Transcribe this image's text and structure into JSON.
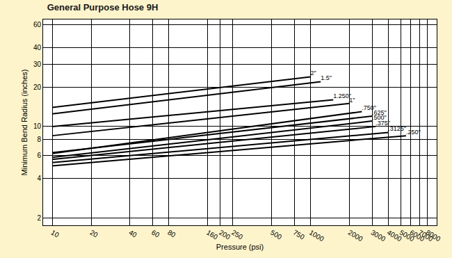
{
  "chart_data": {
    "type": "line",
    "title": "General Purpose Hose 9H",
    "x_label": "Pressure (psi)",
    "y_label": "Minimum Bend Radius (inches)",
    "log": true,
    "grid": true,
    "xlim": [
      8.5,
      9500
    ],
    "ylim": [
      1.75,
      66
    ],
    "xticks": [
      10,
      20,
      40,
      60,
      80,
      160,
      200,
      250,
      500,
      750,
      1000,
      2000,
      3000,
      4000,
      5000,
      6000,
      7000,
      8000
    ],
    "yticks": [
      2,
      4,
      6,
      8,
      10,
      20,
      30,
      40,
      60
    ],
    "series": [
      {
        "name": "2\"",
        "color": "#000000",
        "x": [
          10,
          1000
        ],
        "values": [
          14,
          24
        ]
      },
      {
        "name": "1.5\"",
        "color": "#000000",
        "x": [
          10,
          1200
        ],
        "values": [
          12.5,
          22
        ]
      },
      {
        "name": "1.250\"",
        "color": "#000000",
        "x": [
          10,
          1500
        ],
        "values": [
          10,
          16
        ]
      },
      {
        "name": "1\"",
        "color": "#000000",
        "x": [
          10,
          2000
        ],
        "values": [
          8.5,
          15
        ]
      },
      {
        "name": ".750\"",
        "color": "#000000",
        "x": [
          10,
          2500
        ],
        "values": [
          6.2,
          13
        ]
      },
      {
        "name": ".625\"",
        "color": "#000000",
        "x": [
          10,
          3000
        ],
        "values": [
          6.3,
          12
        ]
      },
      {
        "name": ".500\"",
        "color": "#000000",
        "x": [
          10,
          3000
        ],
        "values": [
          5.8,
          11
        ]
      },
      {
        "name": ".375\"",
        "color": "#000000",
        "x": [
          10,
          3200
        ],
        "values": [
          5.6,
          10
        ]
      },
      {
        "name": ".3125\"",
        "color": "#000000",
        "x": [
          10,
          4000
        ],
        "values": [
          5.3,
          9
        ]
      },
      {
        "name": ".250\"",
        "color": "#000000",
        "x": [
          10,
          5500
        ],
        "values": [
          5.0,
          8.5
        ]
      }
    ]
  }
}
